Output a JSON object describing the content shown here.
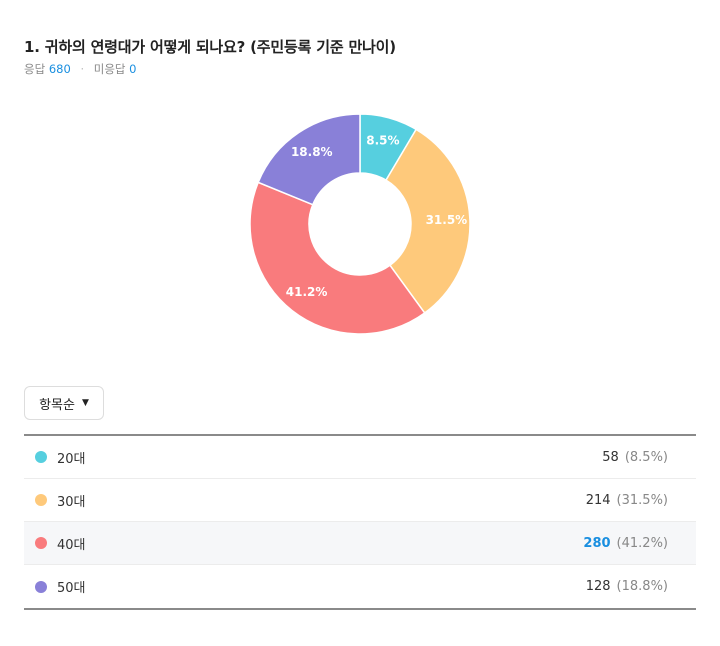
{
  "question": {
    "title": "1. 귀하의 연령대가 어떻게 되나요? (주민등록 기준 만나이)",
    "responses_label": "응답",
    "responses_count": "680",
    "nonresponse_label": "미응답",
    "nonresponse_count": "0"
  },
  "sort_button": {
    "label": "항목순"
  },
  "chart_data": {
    "type": "pie",
    "donut": true,
    "categories": [
      "20대",
      "30대",
      "40대",
      "50대"
    ],
    "values": [
      58,
      214,
      280,
      128
    ],
    "percent_labels": [
      "8.5%",
      "31.5%",
      "41.2%",
      "18.8%"
    ],
    "colors": [
      "#56cfdf",
      "#fec97b",
      "#f97b7d",
      "#8980d8"
    ],
    "start_angle_deg": 0,
    "direction": "clockwise"
  },
  "table": {
    "rows": [
      {
        "label": "20대",
        "count": "58",
        "pct": "(8.5%)",
        "color": "#56cfdf",
        "top": false
      },
      {
        "label": "30대",
        "count": "214",
        "pct": "(31.5%)",
        "color": "#fec97b",
        "top": false
      },
      {
        "label": "40대",
        "count": "280",
        "pct": "(41.2%)",
        "color": "#f97b7d",
        "top": true
      },
      {
        "label": "50대",
        "count": "128",
        "pct": "(18.8%)",
        "color": "#8980d8",
        "top": false
      }
    ]
  }
}
